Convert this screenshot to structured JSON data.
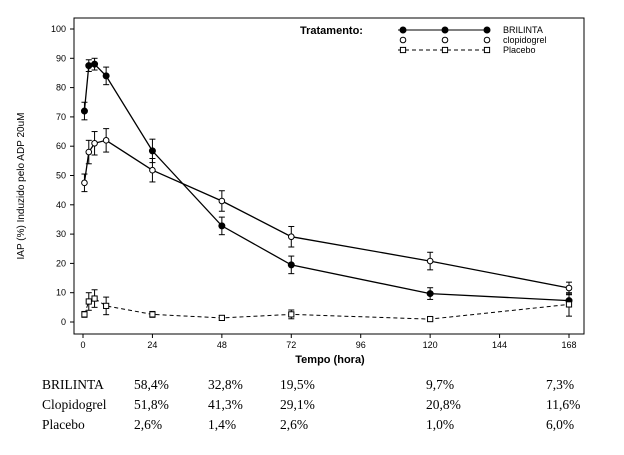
{
  "chart_data": {
    "type": "line",
    "ylabel": "IAP (%) Induzido pelo ADP 20uM",
    "xlabel": "Tempo (hora)",
    "xlim": [
      0,
      170
    ],
    "ylim": [
      0,
      100
    ],
    "xticks": [
      0,
      24,
      48,
      72,
      96,
      120,
      144,
      168
    ],
    "yticks": [
      0,
      10,
      20,
      30,
      40,
      50,
      60,
      70,
      80,
      90,
      100
    ],
    "legend_title": "Tratamento:",
    "legend_position": "top-right",
    "series": [
      {
        "name": "BRILINTA",
        "marker": "filled-circle",
        "line": "solid",
        "points": [
          {
            "x": 0.5,
            "y": 72,
            "err": 3
          },
          {
            "x": 2,
            "y": 87.5,
            "err": 2
          },
          {
            "x": 4,
            "y": 88,
            "err": 2
          },
          {
            "x": 8,
            "y": 84,
            "err": 3
          },
          {
            "x": 24,
            "y": 58.4,
            "err": 4
          },
          {
            "x": 48,
            "y": 32.8,
            "err": 3
          },
          {
            "x": 72,
            "y": 19.5,
            "err": 3
          },
          {
            "x": 120,
            "y": 9.7,
            "err": 2
          },
          {
            "x": 168,
            "y": 7.3,
            "err": 2
          }
        ]
      },
      {
        "name": "clopidogrel",
        "marker": "open-circle",
        "line": "solid",
        "points": [
          {
            "x": 0.5,
            "y": 47.5,
            "err": 3
          },
          {
            "x": 2,
            "y": 58,
            "err": 4
          },
          {
            "x": 4,
            "y": 61,
            "err": 4
          },
          {
            "x": 8,
            "y": 62,
            "err": 4
          },
          {
            "x": 24,
            "y": 51.8,
            "err": 4
          },
          {
            "x": 48,
            "y": 41.3,
            "err": 3.5
          },
          {
            "x": 72,
            "y": 29.1,
            "err": 3.5
          },
          {
            "x": 120,
            "y": 20.8,
            "err": 3
          },
          {
            "x": 168,
            "y": 11.6,
            "err": 2
          }
        ]
      },
      {
        "name": "Placebo",
        "marker": "open-square",
        "line": "dashed",
        "points": [
          {
            "x": 0.5,
            "y": 2.6,
            "err": 1
          },
          {
            "x": 2,
            "y": 7,
            "err": 3
          },
          {
            "x": 4,
            "y": 8,
            "err": 3
          },
          {
            "x": 8,
            "y": 5.5,
            "err": 3
          },
          {
            "x": 24,
            "y": 2.6,
            "err": 1
          },
          {
            "x": 48,
            "y": 1.4,
            "err": 0.8
          },
          {
            "x": 72,
            "y": 2.6,
            "err": 1.5
          },
          {
            "x": 120,
            "y": 1.0,
            "err": 0.5
          },
          {
            "x": 168,
            "y": 6.0,
            "err": 4
          }
        ]
      }
    ]
  },
  "summary_table": {
    "rows": [
      {
        "name": "BRILINTA",
        "values": [
          "58,4%",
          "32,8%",
          "19,5%",
          "9,7%",
          "7,3%"
        ]
      },
      {
        "name": "Clopidogrel",
        "values": [
          "51,8%",
          "41,3%",
          "29,1%",
          "20,8%",
          "11,6%"
        ]
      },
      {
        "name": "Placebo",
        "values": [
          "2,6%",
          "1,4%",
          "2,6%",
          "1,0%",
          "6,0%"
        ]
      }
    ]
  }
}
